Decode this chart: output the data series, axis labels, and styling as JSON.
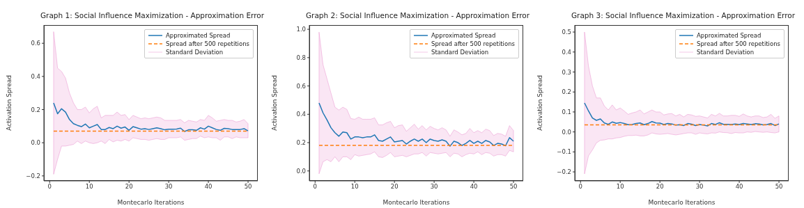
{
  "chart_data": [
    {
      "type": "line",
      "title": "Graph 1: Social Influence Maximization - Approximation Error",
      "xlabel": "Montecarlo Iterations",
      "ylabel": "Activation Spread",
      "legend": "top right",
      "xlim": [
        -1.45,
        52.45
      ],
      "xticks": [
        0,
        10,
        20,
        30,
        40,
        50
      ],
      "ylim": [
        -0.23,
        0.71
      ],
      "yticks": [
        {
          "value": -0.2,
          "label": "−0.2"
        },
        {
          "value": 0,
          "label": "0.0"
        },
        {
          "value": 0.2,
          "label": "0.2"
        },
        {
          "value": 0.4,
          "label": "0.4"
        },
        {
          "value": 0.6,
          "label": "0.6"
        }
      ],
      "x": [
        1,
        2,
        3,
        4,
        5,
        6,
        7,
        8,
        9,
        10,
        11,
        12,
        13,
        14,
        15,
        16,
        17,
        18,
        19,
        20,
        21,
        22,
        23,
        24,
        25,
        26,
        27,
        28,
        29,
        30,
        31,
        32,
        33,
        34,
        35,
        36,
        37,
        38,
        39,
        40,
        41,
        42,
        43,
        44,
        45,
        46,
        47,
        48,
        49,
        50
      ],
      "series": [
        {
          "name": "Approximated Spread",
          "color": "#1f77b4",
          "values": [
            0.24,
            0.175,
            0.205,
            0.185,
            0.14,
            0.115,
            0.105,
            0.097,
            0.113,
            0.09,
            0.1,
            0.11,
            0.08,
            0.08,
            0.092,
            0.085,
            0.1,
            0.088,
            0.095,
            0.075,
            0.097,
            0.09,
            0.082,
            0.085,
            0.08,
            0.085,
            0.09,
            0.085,
            0.078,
            0.082,
            0.082,
            0.083,
            0.088,
            0.068,
            0.078,
            0.078,
            0.075,
            0.09,
            0.082,
            0.1,
            0.09,
            0.08,
            0.075,
            0.087,
            0.085,
            0.08,
            0.08,
            0.08,
            0.085,
            0.072
          ]
        },
        {
          "name": "Spread after 500 repetitions",
          "color": "#ff7f0e",
          "line_style": "dashed",
          "values": [
            0.07,
            0.07,
            0.07,
            0.07,
            0.07,
            0.07,
            0.07,
            0.07,
            0.07,
            0.07,
            0.07,
            0.07,
            0.07,
            0.07,
            0.07,
            0.07,
            0.07,
            0.07,
            0.07,
            0.07,
            0.07,
            0.07,
            0.07,
            0.07,
            0.07,
            0.07,
            0.07,
            0.07,
            0.07,
            0.07,
            0.07,
            0.07,
            0.07,
            0.07,
            0.07,
            0.07,
            0.07,
            0.07,
            0.07,
            0.07,
            0.07,
            0.07,
            0.07,
            0.07,
            0.07,
            0.07,
            0.07,
            0.07,
            0.07,
            0.07
          ]
        },
        {
          "name": "Standard Deviation",
          "color": "#e377c2",
          "values": [
            null,
            null,
            null,
            null,
            null,
            null,
            null,
            null,
            null,
            null,
            null,
            null,
            null,
            null,
            null,
            null,
            null,
            null,
            null,
            null,
            null,
            null,
            null,
            null,
            null,
            null,
            null,
            null,
            null,
            null,
            null,
            null,
            null,
            null,
            null,
            null,
            null,
            null,
            null,
            null,
            null,
            null,
            null,
            null,
            null,
            null,
            null,
            null,
            null,
            null
          ],
          "upper": [
            0.67,
            0.45,
            0.43,
            0.39,
            0.3,
            0.24,
            0.2,
            0.2,
            0.215,
            0.18,
            0.205,
            0.22,
            0.15,
            0.165,
            0.165,
            0.165,
            0.185,
            0.165,
            0.17,
            0.14,
            0.165,
            0.155,
            0.145,
            0.15,
            0.145,
            0.15,
            0.155,
            0.15,
            0.135,
            0.135,
            0.135,
            0.135,
            0.14,
            0.12,
            0.135,
            0.13,
            0.125,
            0.14,
            0.135,
            0.165,
            0.15,
            0.13,
            0.135,
            0.14,
            0.135,
            0.135,
            0.125,
            0.13,
            0.14,
            0.115
          ],
          "lower": [
            -0.19,
            -0.1,
            -0.02,
            -0.02,
            -0.015,
            -0.01,
            0.01,
            -0.005,
            0.01,
            0,
            -0.005,
            0,
            0.01,
            -0.005,
            0.02,
            0.005,
            0.015,
            0.01,
            0.02,
            0.01,
            0.03,
            0.025,
            0.02,
            0.02,
            0.015,
            0.02,
            0.025,
            0.02,
            0.02,
            0.03,
            0.03,
            0.03,
            0.035,
            0.015,
            0.02,
            0.025,
            0.025,
            0.04,
            0.03,
            0.035,
            0.03,
            0.03,
            0.015,
            0.035,
            0.035,
            0.025,
            0.035,
            0.03,
            0.03,
            0.03
          ]
        }
      ]
    },
    {
      "type": "line",
      "title": "Graph 2: Social Influence Maximization - Approximation Error",
      "xlabel": "Montecarlo Iterations",
      "ylabel": "Activation Spread",
      "legend": "top right",
      "xlim": [
        -1.45,
        52.45
      ],
      "xticks": [
        0,
        10,
        20,
        30,
        40,
        50
      ],
      "ylim": [
        -0.07,
        1.03
      ],
      "yticks": [
        {
          "value": 0,
          "label": "0.0"
        },
        {
          "value": 0.2,
          "label": "0.2"
        },
        {
          "value": 0.4,
          "label": "0.4"
        },
        {
          "value": 0.6,
          "label": "0.6"
        },
        {
          "value": 0.8,
          "label": "0.8"
        },
        {
          "value": 1,
          "label": "1.0"
        }
      ],
      "x": [
        1,
        2,
        3,
        4,
        5,
        6,
        7,
        8,
        9,
        10,
        11,
        12,
        13,
        14,
        15,
        16,
        17,
        18,
        19,
        20,
        21,
        22,
        23,
        24,
        25,
        26,
        27,
        28,
        29,
        30,
        31,
        32,
        33,
        34,
        35,
        36,
        37,
        38,
        39,
        40,
        41,
        42,
        43,
        44,
        45,
        46,
        47,
        48,
        49,
        50
      ],
      "series": [
        {
          "name": "Approximated Spread",
          "color": "#1f77b4",
          "values": [
            0.48,
            0.41,
            0.36,
            0.305,
            0.27,
            0.245,
            0.275,
            0.27,
            0.225,
            0.24,
            0.24,
            0.235,
            0.24,
            0.24,
            0.255,
            0.215,
            0.21,
            0.225,
            0.24,
            0.205,
            0.21,
            0.215,
            0.19,
            0.21,
            0.225,
            0.21,
            0.225,
            0.2,
            0.225,
            0.215,
            0.21,
            0.22,
            0.21,
            0.175,
            0.21,
            0.2,
            0.18,
            0.195,
            0.215,
            0.195,
            0.21,
            0.195,
            0.215,
            0.205,
            0.18,
            0.195,
            0.19,
            0.178,
            0.235,
            0.21
          ]
        },
        {
          "name": "Spread after 500 repetitions",
          "color": "#ff7f0e",
          "line_style": "dashed",
          "values": [
            0.18,
            0.18,
            0.18,
            0.18,
            0.18,
            0.18,
            0.18,
            0.18,
            0.18,
            0.18,
            0.18,
            0.18,
            0.18,
            0.18,
            0.18,
            0.18,
            0.18,
            0.18,
            0.18,
            0.18,
            0.18,
            0.18,
            0.18,
            0.18,
            0.18,
            0.18,
            0.18,
            0.18,
            0.18,
            0.18,
            0.18,
            0.18,
            0.18,
            0.18,
            0.18,
            0.18,
            0.18,
            0.18,
            0.18,
            0.18,
            0.18,
            0.18,
            0.18,
            0.18,
            0.18,
            0.18,
            0.18,
            0.18,
            0.18,
            0.18
          ]
        },
        {
          "name": "Standard Deviation",
          "color": "#e377c2",
          "values": [
            null,
            null,
            null,
            null,
            null,
            null,
            null,
            null,
            null,
            null,
            null,
            null,
            null,
            null,
            null,
            null,
            null,
            null,
            null,
            null,
            null,
            null,
            null,
            null,
            null,
            null,
            null,
            null,
            null,
            null,
            null,
            null,
            null,
            null,
            null,
            null,
            null,
            null,
            null,
            null,
            null,
            null,
            null,
            null,
            null,
            null,
            null,
            null,
            null,
            null
          ],
          "upper": [
            0.98,
            0.75,
            0.65,
            0.55,
            0.45,
            0.43,
            0.45,
            0.435,
            0.37,
            0.365,
            0.38,
            0.365,
            0.365,
            0.365,
            0.375,
            0.325,
            0.325,
            0.34,
            0.35,
            0.305,
            0.32,
            0.325,
            0.28,
            0.305,
            0.33,
            0.295,
            0.32,
            0.29,
            0.315,
            0.3,
            0.29,
            0.305,
            0.29,
            0.245,
            0.29,
            0.275,
            0.255,
            0.265,
            0.3,
            0.27,
            0.285,
            0.27,
            0.295,
            0.285,
            0.25,
            0.265,
            0.26,
            0.245,
            0.32,
            0.285
          ],
          "lower": [
            -0.02,
            0.065,
            0.08,
            0.065,
            0.1,
            0.065,
            0.1,
            0.1,
            0.08,
            0.115,
            0.105,
            0.11,
            0.115,
            0.12,
            0.135,
            0.1,
            0.095,
            0.11,
            0.13,
            0.1,
            0.105,
            0.11,
            0.1,
            0.11,
            0.12,
            0.12,
            0.13,
            0.105,
            0.13,
            0.125,
            0.12,
            0.125,
            0.13,
            0.1,
            0.125,
            0.12,
            0.1,
            0.115,
            0.125,
            0.12,
            0.135,
            0.115,
            0.13,
            0.125,
            0.105,
            0.115,
            0.115,
            0.105,
            0.145,
            0.135
          ]
        }
      ]
    },
    {
      "type": "line",
      "title": "Graph 3: Social Influence Maximization - Approximation Error",
      "xlabel": "Montecarlo Iterations",
      "ylabel": "Activation Spread",
      "legend": "top right",
      "xlim": [
        -1.45,
        52.45
      ],
      "xticks": [
        0,
        10,
        20,
        30,
        40,
        50
      ],
      "ylim": [
        -0.245,
        0.535
      ],
      "yticks": [
        {
          "value": -0.2,
          "label": "−0.2"
        },
        {
          "value": -0.1,
          "label": "−0.1"
        },
        {
          "value": 0,
          "label": "0.0"
        },
        {
          "value": 0.1,
          "label": "0.1"
        },
        {
          "value": 0.2,
          "label": "0.2"
        },
        {
          "value": 0.3,
          "label": "0.3"
        },
        {
          "value": 0.4,
          "label": "0.4"
        },
        {
          "value": 0.5,
          "label": "0.5"
        }
      ],
      "x": [
        1,
        2,
        3,
        4,
        5,
        6,
        7,
        8,
        9,
        10,
        11,
        12,
        13,
        14,
        15,
        16,
        17,
        18,
        19,
        20,
        21,
        22,
        23,
        24,
        25,
        26,
        27,
        28,
        29,
        30,
        31,
        32,
        33,
        34,
        35,
        36,
        37,
        38,
        39,
        40,
        41,
        42,
        43,
        44,
        45,
        46,
        47,
        48,
        49,
        50
      ],
      "series": [
        {
          "name": "Approximated Spread",
          "color": "#1f77b4",
          "values": [
            0.145,
            0.105,
            0.07,
            0.058,
            0.065,
            0.045,
            0.038,
            0.05,
            0.043,
            0.047,
            0.042,
            0.036,
            0.037,
            0.042,
            0.045,
            0.036,
            0.042,
            0.052,
            0.045,
            0.044,
            0.037,
            0.042,
            0.04,
            0.034,
            0.036,
            0.032,
            0.042,
            0.039,
            0.032,
            0.037,
            0.034,
            0.03,
            0.042,
            0.037,
            0.046,
            0.038,
            0.038,
            0.037,
            0.04,
            0.037,
            0.042,
            0.04,
            0.037,
            0.041,
            0.04,
            0.035,
            0.037,
            0.042,
            0.032,
            0.04
          ]
        },
        {
          "name": "Spread after 500 repetitions",
          "color": "#ff7f0e",
          "line_style": "dashed",
          "values": [
            0.035,
            0.035,
            0.035,
            0.035,
            0.035,
            0.035,
            0.035,
            0.035,
            0.035,
            0.035,
            0.035,
            0.035,
            0.035,
            0.035,
            0.035,
            0.035,
            0.035,
            0.035,
            0.035,
            0.035,
            0.035,
            0.035,
            0.035,
            0.035,
            0.035,
            0.035,
            0.035,
            0.035,
            0.035,
            0.035,
            0.035,
            0.035,
            0.035,
            0.035,
            0.035,
            0.035,
            0.035,
            0.035,
            0.035,
            0.035,
            0.035,
            0.035,
            0.035,
            0.035,
            0.035,
            0.035,
            0.035,
            0.035,
            0.035,
            0.035
          ]
        },
        {
          "name": "Standard Deviation",
          "color": "#e377c2",
          "values": [
            null,
            null,
            null,
            null,
            null,
            null,
            null,
            null,
            null,
            null,
            null,
            null,
            null,
            null,
            null,
            null,
            null,
            null,
            null,
            null,
            null,
            null,
            null,
            null,
            null,
            null,
            null,
            null,
            null,
            null,
            null,
            null,
            null,
            null,
            null,
            null,
            null,
            null,
            null,
            null,
            null,
            null,
            null,
            null,
            null,
            null,
            null,
            null,
            null,
            null
          ],
          "upper": [
            0.5,
            0.33,
            0.23,
            0.17,
            0.17,
            0.13,
            0.11,
            0.135,
            0.11,
            0.12,
            0.105,
            0.088,
            0.095,
            0.1,
            0.11,
            0.09,
            0.1,
            0.11,
            0.1,
            0.1,
            0.085,
            0.09,
            0.092,
            0.08,
            0.088,
            0.075,
            0.088,
            0.085,
            0.078,
            0.08,
            0.075,
            0.07,
            0.088,
            0.08,
            0.093,
            0.08,
            0.08,
            0.083,
            0.083,
            0.078,
            0.09,
            0.08,
            0.075,
            0.08,
            0.08,
            0.072,
            0.075,
            0.088,
            0.068,
            0.08
          ],
          "lower": [
            -0.21,
            -0.12,
            -0.09,
            -0.055,
            -0.042,
            -0.04,
            -0.035,
            -0.035,
            -0.03,
            -0.028,
            -0.022,
            -0.018,
            -0.018,
            -0.016,
            -0.02,
            -0.02,
            -0.015,
            -0.005,
            -0.01,
            -0.012,
            -0.01,
            -0.008,
            -0.012,
            -0.015,
            -0.012,
            -0.008,
            -0.005,
            -0.005,
            -0.012,
            -0.005,
            -0.008,
            -0.01,
            -0.005,
            -0.006,
            0,
            -0.003,
            -0.004,
            -0.008,
            -0.003,
            -0.005,
            -0.005,
            0,
            -0.002,
            0.002,
            0,
            -0.002,
            0,
            -0.003,
            -0.005,
            0
          ]
        }
      ]
    }
  ]
}
